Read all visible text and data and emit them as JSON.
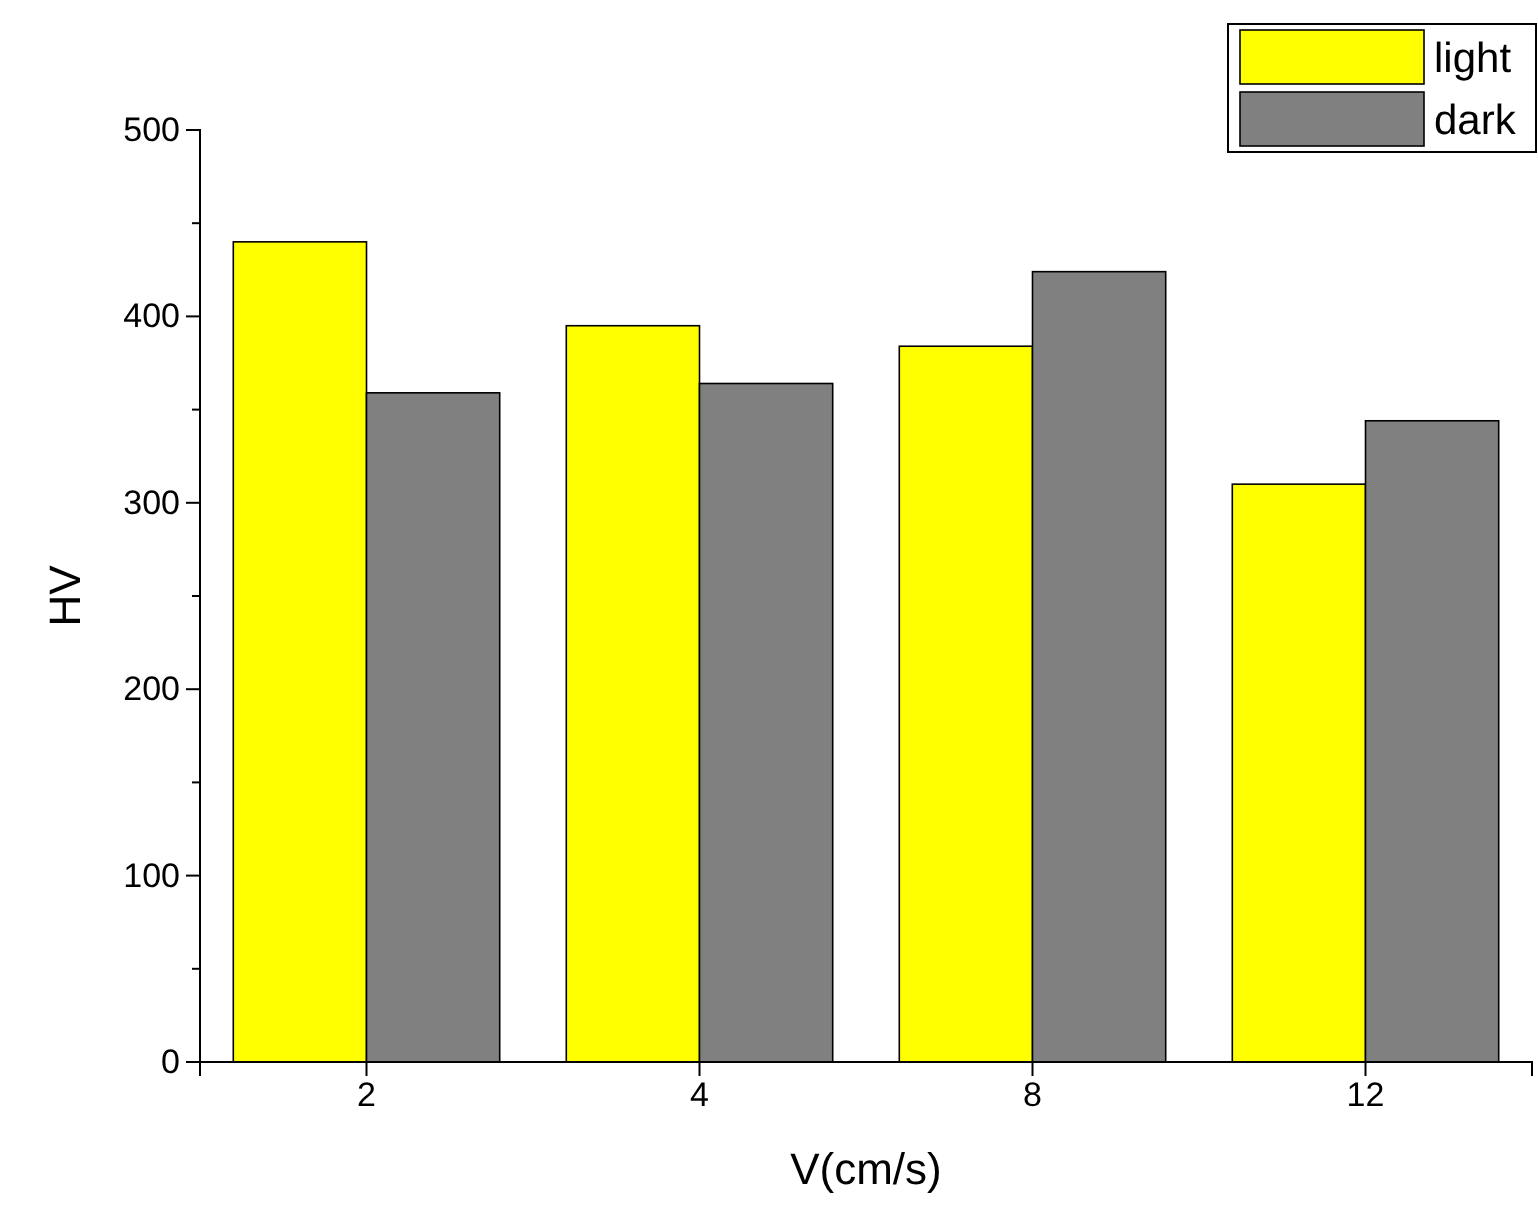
{
  "chart_data": {
    "type": "bar",
    "xlabel": "V(cm/s)",
    "ylabel": "HV",
    "categories": [
      "2",
      "4",
      "8",
      "12"
    ],
    "series": [
      {
        "name": "light",
        "color": "#ffff00",
        "values": [
          440,
          395,
          384,
          310
        ]
      },
      {
        "name": "dark",
        "color": "#808080",
        "values": [
          359,
          364,
          424,
          344
        ]
      }
    ],
    "ylim": [
      0,
      500
    ],
    "yticks": [
      0,
      100,
      200,
      300,
      400,
      500
    ],
    "grid": false,
    "legend": "top right"
  }
}
